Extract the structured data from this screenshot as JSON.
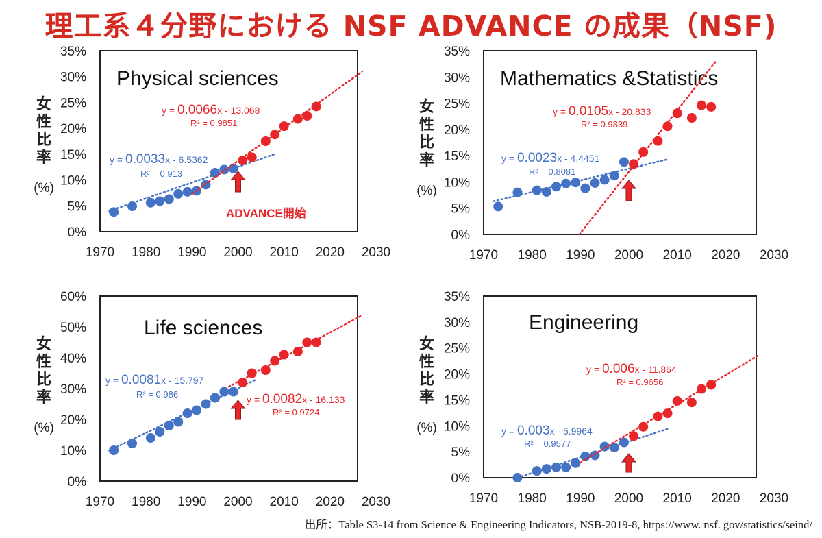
{
  "title": "理工系４分野における NSF ADVANCE の成果（NSF)",
  "source": "出所：Table S3-14 from Science & Engineering Indicators, NSB-2019-8, https://www. nsf. gov/statistics/seind/",
  "colors": {
    "title": "#d42a22",
    "blue": "#4472c4",
    "red": "#e8262a",
    "marker": "#e8262a"
  },
  "chart_data": [
    {
      "type": "scatter",
      "title": "Physical sciences",
      "ylabel": "女性比率",
      "yunit": "(%)",
      "xlim": [
        1970,
        2030
      ],
      "ylim": [
        0,
        35
      ],
      "yticks": [
        0,
        5,
        10,
        15,
        20,
        25,
        30,
        35
      ],
      "xticks": [
        1970,
        1980,
        1990,
        2000,
        2010,
        2020,
        2030
      ],
      "advance_year": 2000,
      "annotation": "ADVANCE開始",
      "series": [
        {
          "color": "blue",
          "x": [
            1973,
            1977,
            1981,
            1983,
            1985,
            1987,
            1989,
            1991,
            1993,
            1995,
            1997,
            1999
          ],
          "y": [
            3.8,
            4.9,
            5.6,
            5.9,
            6.3,
            7.3,
            7.7,
            7.9,
            9.1,
            11.4,
            12.0,
            12.2
          ],
          "trend": {
            "x": [
              1972,
              2008
            ],
            "y": [
              4.0,
              15.0
            ]
          },
          "eq_prefix": "y = ",
          "eq_main": "0.0033",
          "eq_suffix": "x - 6.5362",
          "r2": "R² = 0.913"
        },
        {
          "color": "red",
          "x": [
            2001,
            2003,
            2006,
            2008,
            2010,
            2013,
            2015,
            2017
          ],
          "y": [
            13.8,
            14.4,
            17.5,
            18.8,
            20.4,
            21.8,
            22.4,
            24.2
          ],
          "trend": {
            "x": [
              1990,
              2027
            ],
            "y": [
              7.3,
              31.0
            ]
          },
          "eq_prefix": "y = ",
          "eq_main": "0.0066",
          "eq_suffix": "x - 13.068",
          "r2": "R² = 0.9851"
        }
      ]
    },
    {
      "type": "scatter",
      "title": "Mathematics &Statistics",
      "ylabel": "女性比率",
      "yunit": "(%)",
      "xlim": [
        1970,
        2030
      ],
      "ylim": [
        0,
        35
      ],
      "yticks": [
        0,
        5,
        10,
        15,
        20,
        25,
        30,
        35
      ],
      "xticks": [
        1970,
        1980,
        1990,
        2000,
        2010,
        2020,
        2030
      ],
      "advance_year": 2000,
      "series": [
        {
          "color": "blue",
          "x": [
            1973,
            1977,
            1981,
            1983,
            1985,
            1987,
            1989,
            1991,
            1993,
            1995,
            1997,
            1999
          ],
          "y": [
            5.3,
            8.0,
            8.4,
            8.1,
            9.1,
            9.7,
            9.9,
            8.8,
            9.8,
            10.4,
            11.2,
            13.8
          ],
          "trend": {
            "x": [
              1972,
              2008
            ],
            "y": [
              6.3,
              14.3
            ]
          },
          "eq_prefix": "y = ",
          "eq_main": "0.0023",
          "eq_suffix": "x - 4.4451",
          "r2": "R² = 0.8081"
        },
        {
          "color": "red",
          "x": [
            2001,
            2003,
            2006,
            2008,
            2010,
            2013,
            2015,
            2017
          ],
          "y": [
            13.4,
            15.7,
            17.8,
            20.6,
            23.1,
            22.2,
            24.6,
            24.3
          ],
          "trend": {
            "x": [
              1989.8,
              2018
            ],
            "y": [
              0,
              33
            ]
          },
          "eq_prefix": "y = ",
          "eq_main": "0.0105",
          "eq_suffix": "x - 20.833",
          "r2": "R² = 0.9839"
        }
      ]
    },
    {
      "type": "scatter",
      "title": "Life sciences",
      "ylabel": "女性比率",
      "yunit": "(%)",
      "xlim": [
        1970,
        2030
      ],
      "ylim": [
        0,
        60
      ],
      "yticks": [
        0,
        10,
        20,
        30,
        40,
        50,
        60
      ],
      "xticks": [
        1970,
        1980,
        1990,
        2000,
        2010,
        2020,
        2030
      ],
      "advance_year": 2000,
      "series": [
        {
          "color": "blue",
          "x": [
            1973,
            1977,
            1981,
            1983,
            1985,
            1987,
            1989,
            1991,
            1993,
            1995,
            1997,
            1999
          ],
          "y": [
            10.0,
            12.2,
            14.0,
            16.0,
            18.0,
            19.2,
            22.0,
            23.0,
            25.0,
            27.0,
            29.0,
            29.0
          ],
          "trend": {
            "x": [
              1972,
              2004
            ],
            "y": [
              9.9,
              33.0
            ]
          },
          "eq_prefix": "y = ",
          "eq_main": "0.0081",
          "eq_suffix": "x - 15.797",
          "r2": "R² = 0.986"
        },
        {
          "color": "red",
          "x": [
            2001,
            2003,
            2006,
            2008,
            2010,
            2013,
            2015,
            2017
          ],
          "y": [
            32.0,
            35.0,
            36.0,
            39.0,
            41.0,
            42.0,
            45.0,
            45.0
          ],
          "trend": {
            "x": [
              1998,
              2027
            ],
            "y": [
              30.6,
              53.8
            ]
          },
          "eq_prefix": "y = ",
          "eq_main": "0.0082",
          "eq_suffix": "x - 16.133",
          "r2": "R² = 0.9724"
        }
      ]
    },
    {
      "type": "scatter",
      "title": "Engineering",
      "ylabel": "女性比率",
      "yunit": "(%)",
      "xlim": [
        1970,
        2030
      ],
      "ylim": [
        0,
        35
      ],
      "yticks": [
        0,
        5,
        10,
        15,
        20,
        25,
        30,
        35
      ],
      "xticks": [
        1970,
        1980,
        1990,
        2000,
        2010,
        2020,
        2030
      ],
      "advance_year": 2000,
      "series": [
        {
          "color": "blue",
          "x": [
            1977,
            1981,
            1983,
            1985,
            1987,
            1989,
            1991,
            1993,
            1995,
            1997,
            1999
          ],
          "y": [
            0.0,
            1.3,
            1.7,
            2.0,
            2.0,
            2.8,
            4.1,
            4.3,
            6.0,
            5.8,
            6.8
          ],
          "trend": {
            "x": [
              1977,
              2008
            ],
            "y": [
              0,
              9.4
            ]
          },
          "eq_prefix": "y = ",
          "eq_main": "0.003",
          "eq_suffix": "x - 5.9964",
          "r2": "R² = 0.9577"
        },
        {
          "color": "red",
          "x": [
            2001,
            2003,
            2006,
            2008,
            2010,
            2013,
            2015,
            2017
          ],
          "y": [
            8.0,
            9.8,
            11.8,
            12.4,
            14.8,
            14.5,
            17.1,
            17.9
          ],
          "trend": {
            "x": [
              1990,
              2027
            ],
            "y": [
              2.9,
              23.7
            ]
          },
          "eq_prefix": "y = ",
          "eq_main": "0.006",
          "eq_suffix": "x - 11.864",
          "r2": "R² = 0.9656"
        }
      ]
    }
  ]
}
